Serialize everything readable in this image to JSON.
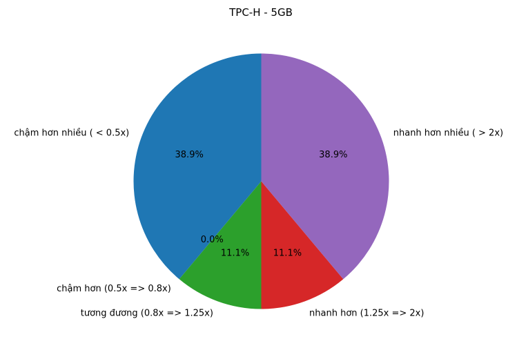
{
  "chart_data": {
    "type": "pie",
    "title": "TPC-H - 5GB",
    "slices": [
      {
        "label": "chậm hơn nhiều ( < 0.5x)",
        "value": 38.9,
        "pct_label": "38.9%",
        "color": "#1f77b4"
      },
      {
        "label": "chậm hơn (0.5x => 0.8x)",
        "value": 0.0,
        "pct_label": "0.0%",
        "color": "#ff7f0e"
      },
      {
        "label": "tương đương (0.8x => 1.25x)",
        "value": 11.1,
        "pct_label": "11.1%",
        "color": "#2ca02c"
      },
      {
        "label": "nhanh hơn (1.25x => 2x)",
        "value": 11.1,
        "pct_label": "11.1%",
        "color": "#d62728"
      },
      {
        "label": "nhanh hơn nhiều ( > 2x)",
        "value": 38.9,
        "pct_label": "38.9%",
        "color": "#9467bd"
      }
    ]
  }
}
